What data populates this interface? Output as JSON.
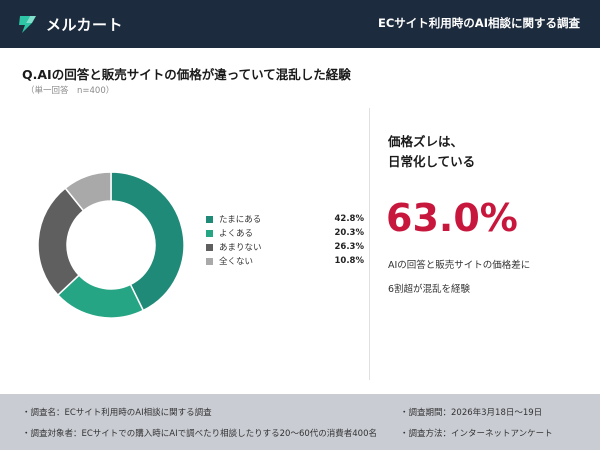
{
  "header": {
    "logo_text": "メルカート",
    "title": "ECサイト利用時のAI相談に関する調査"
  },
  "question": {
    "title": "Q.AIの回答と販売サイトの価格が違っていて混乱した経験",
    "subtitle": "（単一回答　n=400）"
  },
  "chart_data": {
    "type": "pie",
    "donut": true,
    "title": "",
    "categories": [
      "たまにある",
      "よくある",
      "あまりない",
      "全くない"
    ],
    "values": [
      42.8,
      20.3,
      26.3,
      10.8
    ],
    "value_labels": [
      "42.8%",
      "20.3%",
      "26.3%",
      "10.8%"
    ],
    "colors": [
      "#1f8a78",
      "#26a585",
      "#5f5f5f",
      "#a9a9a9"
    ],
    "legend_position": "right"
  },
  "highlight": {
    "headline_line1": "価格ズレは、",
    "headline_line2": "日常化している",
    "big_number": "63.0%",
    "desc_line1": "AIの回答と販売サイトの価格差に",
    "desc_line2": "6割超が混乱を経験",
    "accent_color": "#c8173c"
  },
  "footer": {
    "survey_name": "・調査名：ECサイト利用時のAI相談に関する調査",
    "survey_period": "・調査期間：2026年3月18日～19日",
    "survey_target": "・調査対象者：ECサイトでの購入時にAIで調べたり相談したりする20～60代の消費者400名",
    "survey_method": "・調査方法：インターネットアンケート"
  }
}
